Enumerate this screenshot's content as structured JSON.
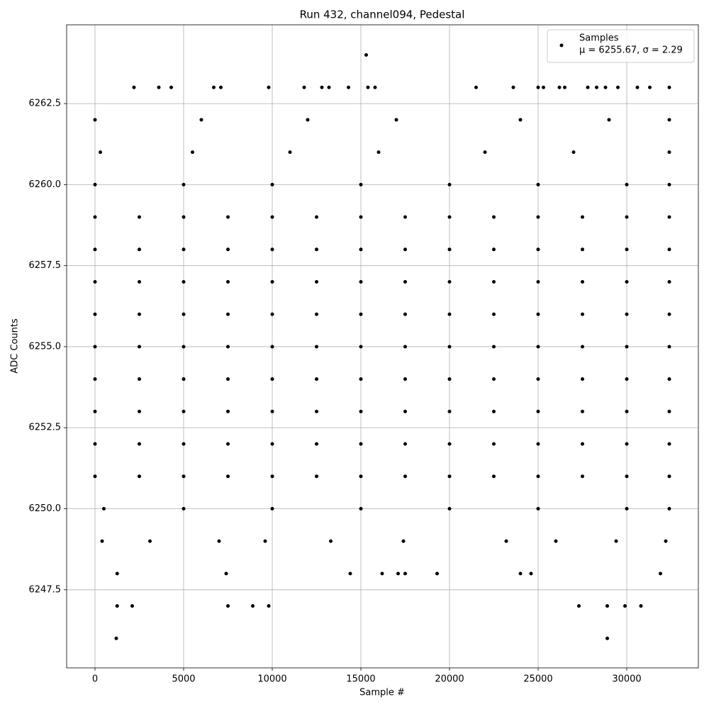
{
  "chart_data": {
    "type": "scatter",
    "title": "Run 432, channel094, Pedestal",
    "x_label": "Sample #",
    "y_label": "ADC Counts",
    "legend_note": "μ = 6255.67, σ = 2.29",
    "legend_position": "upper right",
    "grid": true,
    "xlim": [
      -1600,
      34040
    ],
    "ylim": [
      6245.09,
      6264.93
    ],
    "xticks": [
      0,
      5000,
      10000,
      15000,
      20000,
      25000,
      30000
    ],
    "yticks": [
      6247.5,
      {
        "value": 6250,
        "label": "6250.0"
      },
      6252.5,
      {
        "value": 6255,
        "label": "6255.0"
      },
      6257.5,
      {
        "value": 6260,
        "label": "6260.0"
      },
      6262.5
    ],
    "x": [
      0,
      2500,
      5000,
      7500,
      10000,
      12500,
      15000,
      17500,
      20000,
      22500,
      25000,
      27500,
      30000,
      32400,
      0,
      2500,
      5000,
      7500,
      10000,
      12500,
      15000,
      17500,
      20000,
      22500,
      25000,
      27500,
      30000,
      32400,
      0,
      2500,
      5000,
      7500,
      10000,
      12500,
      15000,
      17500,
      20000,
      22500,
      25000,
      27500,
      30000,
      32400,
      0,
      2500,
      5000,
      7500,
      10000,
      12500,
      15000,
      17500,
      20000,
      22500,
      25000,
      27500,
      30000,
      32400,
      0,
      2500,
      5000,
      7500,
      10000,
      12500,
      15000,
      17500,
      20000,
      22500,
      25000,
      27500,
      30000,
      32400,
      0,
      2500,
      5000,
      7500,
      10000,
      12500,
      15000,
      17500,
      20000,
      22500,
      25000,
      27500,
      30000,
      32400,
      0,
      2500,
      5000,
      7500,
      10000,
      12500,
      15000,
      17500,
      20000,
      22500,
      25000,
      27500,
      30000,
      32400,
      0,
      2500,
      5000,
      7500,
      10000,
      12500,
      15000,
      17500,
      20000,
      22500,
      25000,
      27500,
      30000,
      32400,
      0,
      2500,
      5000,
      7500,
      10000,
      12500,
      15000,
      17500,
      20000,
      22500,
      25000,
      27500,
      30000,
      32400,
      500,
      5000,
      10000,
      15000,
      20000,
      25000,
      30000,
      32400,
      0,
      5000,
      10000,
      15000,
      20000,
      25000,
      30000,
      32400,
      300,
      5500,
      11000,
      16000,
      22000,
      27000,
      32400,
      0,
      6000,
      12000,
      17000,
      24000,
      29000,
      32400,
      400,
      3100,
      7000,
      9600,
      13300,
      17400,
      23200,
      26000,
      29400,
      32200,
      2200,
      3600,
      4300,
      6700,
      7100,
      9800,
      11800,
      12800,
      13200,
      14300,
      15400,
      15800,
      21500,
      23600,
      25000,
      25300,
      26200,
      26500,
      27800,
      28300,
      28800,
      29500,
      30600,
      31300,
      32400,
      15300,
      1250,
      7400,
      14400,
      16200,
      17100,
      17500,
      19300,
      24000,
      24600,
      31900,
      1250,
      2100,
      7500,
      8900,
      9800,
      27300,
      28900,
      29900,
      30800,
      1200,
      28900
    ],
    "series": [
      {
        "name": "Samples",
        "color": "#000000",
        "values": [
          6251,
          6251,
          6251,
          6251,
          6251,
          6251,
          6251,
          6251,
          6251,
          6251,
          6251,
          6251,
          6251,
          6251,
          6252,
          6252,
          6252,
          6252,
          6252,
          6252,
          6252,
          6252,
          6252,
          6252,
          6252,
          6252,
          6252,
          6252,
          6253,
          6253,
          6253,
          6253,
          6253,
          6253,
          6253,
          6253,
          6253,
          6253,
          6253,
          6253,
          6253,
          6253,
          6254,
          6254,
          6254,
          6254,
          6254,
          6254,
          6254,
          6254,
          6254,
          6254,
          6254,
          6254,
          6254,
          6254,
          6255,
          6255,
          6255,
          6255,
          6255,
          6255,
          6255,
          6255,
          6255,
          6255,
          6255,
          6255,
          6255,
          6255,
          6256,
          6256,
          6256,
          6256,
          6256,
          6256,
          6256,
          6256,
          6256,
          6256,
          6256,
          6256,
          6256,
          6256,
          6257,
          6257,
          6257,
          6257,
          6257,
          6257,
          6257,
          6257,
          6257,
          6257,
          6257,
          6257,
          6257,
          6257,
          6258,
          6258,
          6258,
          6258,
          6258,
          6258,
          6258,
          6258,
          6258,
          6258,
          6258,
          6258,
          6258,
          6258,
          6259,
          6259,
          6259,
          6259,
          6259,
          6259,
          6259,
          6259,
          6259,
          6259,
          6259,
          6259,
          6259,
          6259,
          6250,
          6250,
          6250,
          6250,
          6250,
          6250,
          6250,
          6250,
          6260,
          6260,
          6260,
          6260,
          6260,
          6260,
          6260,
          6260,
          6261,
          6261,
          6261,
          6261,
          6261,
          6261,
          6261,
          6262,
          6262,
          6262,
          6262,
          6262,
          6262,
          6262,
          6249,
          6249,
          6249,
          6249,
          6249,
          6249,
          6249,
          6249,
          6249,
          6249,
          6263,
          6263,
          6263,
          6263,
          6263,
          6263,
          6263,
          6263,
          6263,
          6263,
          6263,
          6263,
          6263,
          6263,
          6263,
          6263,
          6263,
          6263,
          6263,
          6263,
          6263,
          6263,
          6263,
          6263,
          6263,
          6264,
          6248,
          6248,
          6248,
          6248,
          6248,
          6248,
          6248,
          6248,
          6248,
          6248,
          6247,
          6247,
          6247,
          6247,
          6247,
          6247,
          6247,
          6247,
          6247,
          6246,
          6246
        ]
      }
    ]
  }
}
